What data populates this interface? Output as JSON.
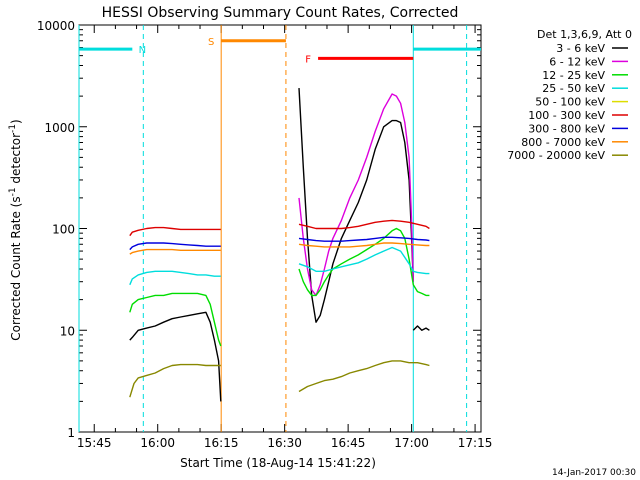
{
  "chart_data": {
    "type": "line",
    "title": "HESSI Observing Summary Count Rates, Corrected",
    "xlabel": "Start Time (18-Aug-14 15:41:22)",
    "ylabel_main": "Corrected Count Rate (s",
    "ylabel_sup1": "-1",
    "ylabel_mid": " detector",
    "ylabel_sup2": "-1",
    "ylabel_end": ")",
    "footer_date": "14-Jan-2017 00:30",
    "x_unit": "minutes after 15:41:22",
    "xlim": [
      0,
      95
    ],
    "ylim": [
      1,
      10000
    ],
    "yscale": "log",
    "x_ticks": [
      {
        "x": 3.6,
        "label": "15:45"
      },
      {
        "x": 18.6,
        "label": "16:00"
      },
      {
        "x": 33.6,
        "label": "16:15"
      },
      {
        "x": 48.6,
        "label": "16:30"
      },
      {
        "x": 63.6,
        "label": "16:45"
      },
      {
        "x": 78.6,
        "label": "17:00"
      },
      {
        "x": 93.6,
        "label": "17:15"
      }
    ],
    "y_ticks": [
      {
        "y": 1,
        "label": "1"
      },
      {
        "y": 10,
        "label": "10"
      },
      {
        "y": 100,
        "label": "100"
      },
      {
        "y": 1000,
        "label": "1000"
      },
      {
        "y": 10000,
        "label": "10000"
      }
    ],
    "legend_header": "Det 1,3,6,9, Att 0",
    "legend_placement": "right",
    "series": [
      {
        "name": "3 - 6 keV",
        "color": "#000000",
        "segments": [
          {
            "x": [
              12.0,
              12.6,
              14.0,
              16.0,
              18.0,
              20.0,
              22.0,
              24.0,
              26.0,
              28.0,
              30.0,
              31.0,
              32.0,
              33.0,
              33.5
            ],
            "y": [
              8,
              8.5,
              10,
              10.5,
              11,
              12,
              13,
              13.5,
              14,
              14.5,
              15,
              12,
              8,
              5,
              2
            ]
          },
          {
            "x": 52.0,
            "y": 2400
          },
          {
            "x": [
              52.0,
              53.0,
              54.0,
              55.0,
              56.0,
              57.0,
              58.0,
              59.0,
              60.0,
              62.0,
              64.0,
              66.0,
              68.0,
              70.0,
              72.0,
              74.0,
              75.0,
              76.0,
              77.0,
              78.0,
              78.5,
              79.0
            ],
            "y": [
              2400,
              400,
              80,
              22,
              12,
              14,
              20,
              30,
              45,
              80,
              120,
              180,
              300,
              600,
              1000,
              1150,
              1150,
              1100,
              700,
              300,
              100,
              30
            ]
          },
          {
            "x": [
              79.0,
              80.0,
              81.0,
              82.0,
              82.8
            ],
            "y": [
              10,
              11,
              10,
              10.5,
              10
            ]
          }
        ]
      },
      {
        "name": "6 - 12 keV",
        "color": "#dd00dd",
        "segments": [
          {
            "x": [
              52.0,
              53.0,
              54.0,
              55.0,
              56.0,
              57.0,
              58.0,
              59.0,
              60.0,
              62.0,
              64.0,
              66.0,
              68.0,
              70.0,
              72.0,
              74.0,
              75.0,
              76.0,
              77.0,
              78.0,
              78.5,
              79.0
            ],
            "y": [
              200,
              80,
              40,
              25,
              22,
              28,
              40,
              60,
              80,
              120,
              200,
              300,
              500,
              900,
              1500,
              2100,
              2000,
              1700,
              1100,
              500,
              150,
              30
            ]
          }
        ]
      },
      {
        "name": "12 - 25 keV",
        "color": "#00dd00",
        "segments": [
          {
            "x": [
              12.0,
              12.6,
              14.0,
              16.0,
              18.0,
              20.0,
              22.0,
              24.0,
              26.0,
              28.0,
              30.0,
              31.0,
              32.0,
              33.0,
              33.5
            ],
            "y": [
              15,
              18,
              20,
              21,
              22,
              22,
              23,
              23,
              23,
              23,
              22,
              18,
              12,
              8,
              7
            ]
          },
          {
            "x": [
              52.0,
              53.0,
              54.0,
              55.0,
              56.0,
              57.0,
              58.0,
              59.0,
              60.0,
              62.0,
              64.0,
              66.0,
              68.0,
              70.0,
              72.0,
              74.0,
              75.0,
              76.0,
              77.0,
              78.0,
              79.0,
              80.0,
              81.0,
              82.0,
              82.8
            ],
            "y": [
              40,
              30,
              25,
              22,
              22,
              25,
              30,
              35,
              40,
              45,
              50,
              55,
              62,
              70,
              80,
              95,
              100,
              95,
              80,
              50,
              28,
              24,
              23,
              22,
              22
            ]
          }
        ]
      },
      {
        "name": "25 - 50 keV",
        "color": "#00dddd",
        "segments": [
          {
            "x": [
              12.0,
              12.6,
              14.0,
              16.0,
              18.0,
              20.0,
              22.0,
              24.0,
              26.0,
              28.0,
              30.0,
              32.0,
              33.5
            ],
            "y": [
              28,
              32,
              35,
              37,
              38,
              38,
              38,
              37,
              36,
              35,
              35,
              34,
              34
            ]
          },
          {
            "x": [
              52.0,
              54.0,
              56.0,
              58.0,
              60.0,
              62.0,
              64.0,
              66.0,
              68.0,
              70.0,
              72.0,
              74.0,
              76.0,
              78.0,
              79.0,
              80.0,
              82.0,
              82.8
            ],
            "y": [
              45,
              42,
              38,
              38,
              40,
              42,
              44,
              46,
              50,
              55,
              60,
              65,
              60,
              45,
              38,
              37,
              36,
              36
            ]
          }
        ]
      },
      {
        "name": "50 - 100 keV",
        "color": "#dddd00",
        "segments": []
      },
      {
        "name": "100 - 300 keV",
        "color": "#dd0000",
        "segments": [
          {
            "x": [
              12.0,
              12.6,
              14.0,
              16.0,
              18.0,
              20.0,
              22.0,
              24.0,
              26.0,
              28.0,
              30.0,
              32.0,
              33.5
            ],
            "y": [
              85,
              92,
              96,
              100,
              102,
              102,
              100,
              98,
              98,
              98,
              98,
              98,
              98
            ]
          },
          {
            "x": [
              52.0,
              54.0,
              56.0,
              58.0,
              60.0,
              62.0,
              64.0,
              66.0,
              68.0,
              70.0,
              72.0,
              74.0,
              76.0,
              78.0,
              80.0,
              82.0,
              82.8
            ],
            "y": [
              110,
              105,
              100,
              100,
              100,
              100,
              102,
              105,
              110,
              115,
              118,
              120,
              118,
              115,
              110,
              105,
              100
            ]
          }
        ]
      },
      {
        "name": "300 - 800 keV",
        "color": "#0000dd",
        "segments": [
          {
            "x": [
              12.0,
              12.6,
              14.0,
              16.0,
              18.0,
              20.0,
              22.0,
              24.0,
              26.0,
              28.0,
              30.0,
              32.0,
              33.5
            ],
            "y": [
              62,
              66,
              70,
              72,
              72,
              72,
              71,
              70,
              69,
              68,
              67,
              67,
              67
            ]
          },
          {
            "x": [
              52.0,
              54.0,
              56.0,
              58.0,
              60.0,
              62.0,
              64.0,
              66.0,
              68.0,
              70.0,
              72.0,
              74.0,
              76.0,
              78.0,
              80.0,
              82.0,
              82.8
            ],
            "y": [
              80,
              78,
              76,
              75,
              75,
              75,
              76,
              77,
              78,
              80,
              82,
              82,
              81,
              80,
              78,
              77,
              76
            ]
          }
        ]
      },
      {
        "name": "800 - 7000 keV",
        "color": "#ff8800",
        "segments": [
          {
            "x": [
              12.0,
              12.6,
              14.0,
              16.0,
              18.0,
              20.0,
              22.0,
              24.0,
              26.0,
              28.0,
              30.0,
              32.0,
              33.5
            ],
            "y": [
              56,
              58,
              60,
              62,
              62,
              62,
              62,
              61,
              61,
              61,
              61,
              61,
              61
            ]
          },
          {
            "x": [
              52.0,
              54.0,
              56.0,
              58.0,
              60.0,
              62.0,
              64.0,
              66.0,
              68.0,
              70.0,
              72.0,
              74.0,
              76.0,
              78.0,
              80.0,
              82.0,
              82.8
            ],
            "y": [
              70,
              68,
              67,
              66,
              66,
              66,
              66,
              67,
              68,
              70,
              72,
              72,
              71,
              70,
              69,
              68,
              68
            ]
          }
        ]
      },
      {
        "name": "7000 - 20000 keV",
        "color": "#888800",
        "segments": [
          {
            "x": [
              12.0,
              13.0,
              14.0,
              16.0,
              18.0,
              20.0,
              22.0,
              24.0,
              26.0,
              28.0,
              30.0,
              32.0,
              33.5
            ],
            "y": [
              2.2,
              3.0,
              3.4,
              3.6,
              3.8,
              4.2,
              4.5,
              4.6,
              4.6,
              4.6,
              4.5,
              4.5,
              4.5
            ]
          },
          {
            "x": [
              52.0,
              54.0,
              56.0,
              58.0,
              60.0,
              62.0,
              64.0,
              66.0,
              68.0,
              70.0,
              72.0,
              74.0,
              76.0,
              78.0,
              80.0,
              82.0,
              82.8
            ],
            "y": [
              2.5,
              2.8,
              3.0,
              3.2,
              3.3,
              3.5,
              3.8,
              4.0,
              4.2,
              4.5,
              4.8,
              5.0,
              5.0,
              4.8,
              4.8,
              4.6,
              4.5
            ]
          }
        ]
      }
    ],
    "flags": [
      {
        "name": "N",
        "color": "#00dddd",
        "y": 5800,
        "segments": [
          [
            0,
            12.6
          ],
          [
            79.0,
            95
          ]
        ]
      },
      {
        "name": "S",
        "color": "#ff8800",
        "y": 7000,
        "segments": [
          [
            33.6,
            48.9
          ]
        ]
      },
      {
        "name": "F",
        "color": "#ff0000",
        "y": 4700,
        "segments": [
          [
            56.5,
            79.0
          ]
        ]
      }
    ],
    "markers": [
      {
        "x": 0.0,
        "color": "#00dddd",
        "style": "solid"
      },
      {
        "x": 15.2,
        "color": "#00dddd",
        "style": "dashed"
      },
      {
        "x": 33.6,
        "color": "#ff8800",
        "style": "solid"
      },
      {
        "x": 48.9,
        "color": "#ff8800",
        "style": "dashed"
      },
      {
        "x": 79.0,
        "color": "#00dddd",
        "style": "solid"
      },
      {
        "x": 91.6,
        "color": "#00dddd",
        "style": "dashed"
      }
    ]
  }
}
